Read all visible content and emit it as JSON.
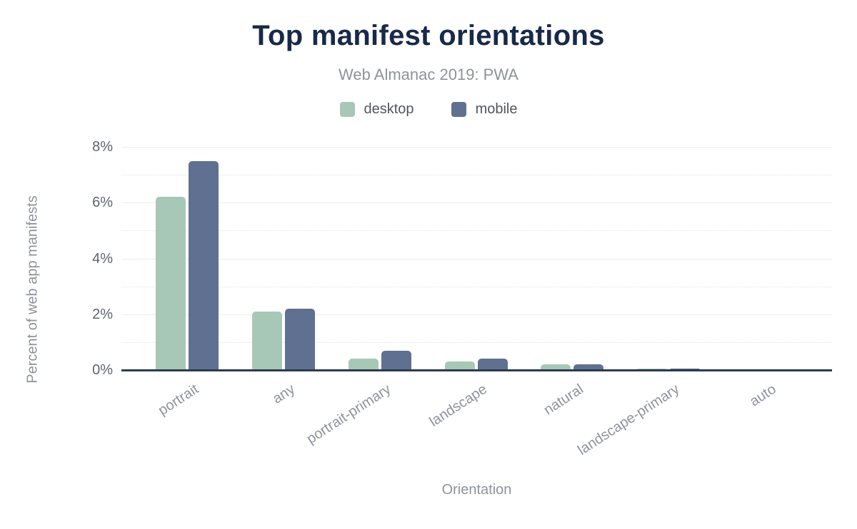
{
  "header": {
    "title": "Top manifest orientations",
    "subtitle": "Web Almanac 2019: PWA"
  },
  "chart_data": {
    "type": "bar",
    "title": "Top manifest orientations",
    "subtitle": "Web Almanac 2019: PWA",
    "categories": [
      "portrait",
      "any",
      "portrait-primary",
      "landscape",
      "natural",
      "landscape-primary",
      "auto"
    ],
    "series": [
      {
        "name": "desktop",
        "color": "#a8c8b7",
        "values": [
          6.2,
          2.1,
          0.4,
          0.3,
          0.2,
          0.05,
          0.03
        ]
      },
      {
        "name": "mobile",
        "color": "#5f7090",
        "values": [
          7.5,
          2.2,
          0.7,
          0.4,
          0.2,
          0.05,
          0.03
        ]
      }
    ],
    "xlabel": "Orientation",
    "ylabel": "Percent of web app manifests",
    "ylim": [
      0,
      8
    ],
    "ytick_values": [
      0,
      2,
      4,
      6,
      8
    ],
    "ytick_labels": [
      "0%",
      "2%",
      "4%",
      "6%",
      "8%"
    ],
    "y_major_step": 2,
    "y_minor_step": 1,
    "grid": "horizontal: solid major lines every 2%, dotted minor lines every 1%",
    "legend_position": "top"
  }
}
